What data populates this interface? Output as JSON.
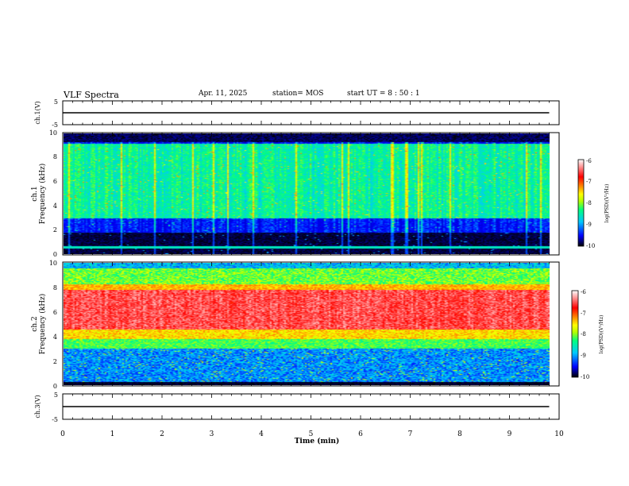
{
  "header": {
    "title": "VLF Spectra",
    "date": "Apr. 11, 2025",
    "station": "station= MOS",
    "start": "start  UT  =   8  : 50 : 1"
  },
  "colors": {
    "colormap": [
      "#000000",
      "#0000ff",
      "#00c8ff",
      "#00ff7f",
      "#b4ff00",
      "#ffff00",
      "#ff7f00",
      "#ff0000",
      "#ffffff"
    ]
  },
  "chart_data": [
    {
      "type": "line",
      "name": "ch1-voltage",
      "ylabel": "ch.1(V)",
      "ylim": [
        -5,
        5
      ],
      "yticks": [
        "5",
        "-5"
      ],
      "level": 0,
      "xlim": [
        0,
        10
      ]
    },
    {
      "type": "heatmap",
      "name": "ch1-spectrogram",
      "ylabel": "ch.1\nFrequency (kHz)",
      "ylim": [
        0,
        10
      ],
      "yticks": [
        "0",
        "2",
        "4",
        "6",
        "8",
        "10"
      ],
      "xlim": [
        0,
        9.8
      ],
      "dominant_band_khz": [
        3,
        9
      ],
      "colorbar": {
        "label": "log(PSD)(V²/Hz)",
        "range": [
          -10,
          -6
        ],
        "ticks": [
          "-6",
          "-7",
          "-8",
          "-9",
          "-10"
        ]
      }
    },
    {
      "type": "heatmap",
      "name": "ch2-spectrogram",
      "ylabel": "ch.2\nFrequency (kHz)",
      "ylim": [
        0,
        10
      ],
      "yticks": [
        "0",
        "2",
        "4",
        "6",
        "8",
        "10"
      ],
      "xlim": [
        0,
        9.8
      ],
      "dominant_band_khz": [
        4.5,
        8
      ],
      "colorbar": {
        "label": "log(PSD)(V²/Hz)",
        "range": [
          -10,
          -6
        ],
        "ticks": [
          "-6",
          "-7",
          "-8",
          "-9",
          "-10"
        ]
      }
    },
    {
      "type": "line",
      "name": "ch3-voltage",
      "ylabel": "ch.3(V)",
      "ylim": [
        -5,
        5
      ],
      "yticks": [
        "5",
        "-5"
      ],
      "level": 0,
      "xlim": [
        0,
        10
      ]
    }
  ],
  "xaxis": {
    "label": "Time (min)",
    "range": [
      0,
      10
    ],
    "ticks": [
      "0",
      "1",
      "2",
      "3",
      "4",
      "5",
      "6",
      "7",
      "8",
      "9",
      "10"
    ]
  }
}
